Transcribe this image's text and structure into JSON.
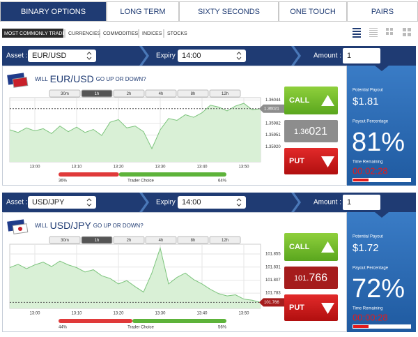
{
  "tabs": [
    "BINARY OPTIONS",
    "LONG TERM",
    "SIXTY SECONDS",
    "ONE TOUCH",
    "PAIRS"
  ],
  "active_tab": 0,
  "filters": [
    "MOST COMMONLY TRADED",
    "CURRENCIES",
    "COMMODITIES",
    "INDICES",
    "STOCKS"
  ],
  "active_filter": 0,
  "panels": [
    {
      "asset_label": "Asset :",
      "asset": "EUR/USD",
      "expiry_label": "Expiry :",
      "expiry": "14:00",
      "amount_label": "Amount : $",
      "amount": "1",
      "question_prefix": "WILL",
      "question_asset": "EUR/USD",
      "question_suffix": "GO UP OR DOWN?",
      "timeframes": [
        "30m",
        "1h",
        "2h",
        "4h",
        "8h",
        "12h"
      ],
      "active_timeframe": 1,
      "chart": {
        "type": "area",
        "x": [
          "12:54",
          "12:56",
          "12:58",
          "13:00",
          "13:02",
          "13:04",
          "13:06",
          "13:08",
          "13:10",
          "13:12",
          "13:14",
          "13:16",
          "13:18",
          "13:20",
          "13:22",
          "13:24",
          "13:26",
          "13:28",
          "13:30",
          "13:32",
          "13:34",
          "13:36",
          "13:38",
          "13:40",
          "13:42",
          "13:44",
          "13:46",
          "13:48",
          "13:50",
          "13:52",
          "13:54"
        ],
        "values": [
          1.35965,
          1.35958,
          1.3597,
          1.35962,
          1.35968,
          1.35955,
          1.35975,
          1.3596,
          1.35972,
          1.35958,
          1.35966,
          1.3595,
          1.35985,
          1.35992,
          1.3597,
          1.35975,
          1.3596,
          1.35915,
          1.35965,
          1.35995,
          1.3599,
          1.36005,
          1.35998,
          1.3601,
          1.3603,
          1.36025,
          1.36015,
          1.36028,
          1.36035,
          1.36018,
          1.36021
        ],
        "xlim": [
          "12:54",
          "13:54"
        ],
        "ylim": [
          1.3588,
          1.3605
        ],
        "xticks": [
          "13:00",
          "13:10",
          "13:20",
          "13:30",
          "13:40",
          "13:50"
        ],
        "yticks": [
          1.36044,
          {
            "value": 1.35982,
            "label": "1.35982"
          },
          1.35951,
          {
            "value": 1.3592,
            "label": "1.35920"
          }
        ],
        "current": {
          "value": 1.36021,
          "label": "1.36021"
        },
        "color": "#7cc47c",
        "fill": "#d9f0d6",
        "price_color": "#8d8d8d"
      },
      "call": "CALL",
      "put": "PUT",
      "price_parts": [
        "1.36",
        "021"
      ],
      "trader_choice": {
        "label": "Trader Choice",
        "put": {
          "value": 36,
          "label": "36%"
        },
        "call": {
          "value": 64,
          "label": "64%"
        }
      },
      "payout": {
        "potential_label": "Potential Payout",
        "potential": "$1.81",
        "percentage_label": "Payout Percentage",
        "percentage": "81%",
        "time_label": "Time Remaining",
        "time": "00:02:28"
      }
    },
    {
      "asset_label": "Asset :",
      "asset": "USD/JPY",
      "expiry_label": "Expiry :",
      "expiry": "14:00",
      "amount_label": "Amount : $",
      "amount": "1",
      "question_prefix": "WILL",
      "question_asset": "USD/JPY",
      "question_suffix": "GO UP OR DOWN?",
      "timeframes": [
        "30m",
        "1h",
        "2h",
        "4h",
        "8h",
        "12h"
      ],
      "active_timeframe": 1,
      "chart": {
        "type": "area",
        "x": [
          "12:54",
          "12:56",
          "12:58",
          "13:00",
          "13:02",
          "13:04",
          "13:06",
          "13:08",
          "13:10",
          "13:12",
          "13:14",
          "13:16",
          "13:18",
          "13:20",
          "13:22",
          "13:24",
          "13:26",
          "13:28",
          "13:30",
          "13:32",
          "13:34",
          "13:36",
          "13:38",
          "13:40",
          "13:42",
          "13:44",
          "13:46",
          "13:48",
          "13:50",
          "13:52",
          "13:54"
        ],
        "values": [
          101.83,
          101.836,
          101.828,
          101.835,
          101.84,
          101.832,
          101.842,
          101.835,
          101.83,
          101.822,
          101.826,
          101.815,
          101.81,
          101.8,
          101.806,
          101.795,
          101.785,
          101.82,
          101.866,
          101.8,
          101.812,
          101.82,
          101.808,
          101.8,
          101.79,
          101.782,
          101.778,
          101.78,
          101.772,
          101.77,
          101.766
        ],
        "xlim": [
          "12:54",
          "13:54"
        ],
        "ylim": [
          101.755,
          101.873
        ],
        "xticks": [
          "13:00",
          "13:10",
          "13:20",
          "13:30",
          "13:40",
          "13:50"
        ],
        "yticks": [
          101.855,
          101.831,
          101.807,
          101.783
        ],
        "current": {
          "value": 101.766,
          "label": "101.766"
        },
        "color": "#7cc47c",
        "fill": "#d9f0d6",
        "price_color": "#a51c1c"
      },
      "call": "CALL",
      "put": "PUT",
      "price_parts": [
        "101.",
        "766"
      ],
      "trader_choice": {
        "label": "Trader Choice",
        "put": {
          "value": 44,
          "label": "44%"
        },
        "call": {
          "value": 56,
          "label": "56%"
        }
      },
      "payout": {
        "potential_label": "Potential Payout",
        "potential": "$1.72",
        "percentage_label": "Payout Percentage",
        "percentage": "72%",
        "time_label": "Time Remaining",
        "time": "00:00:28"
      }
    }
  ]
}
